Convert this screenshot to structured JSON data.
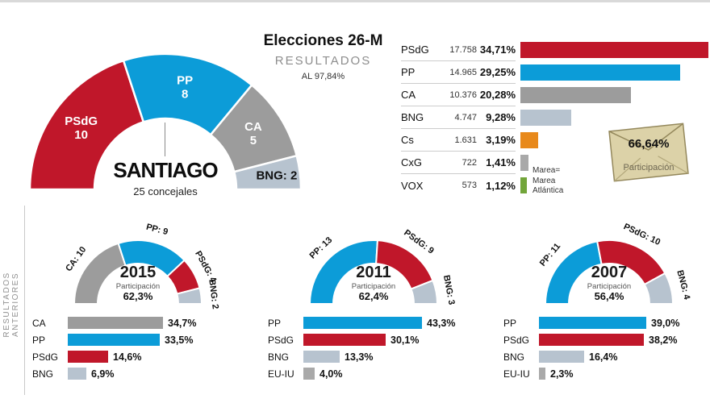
{
  "header": {
    "title": "Elecciones 26-M",
    "subtitle": "RESULTADOS",
    "counted": "AL 97,84%"
  },
  "sidebar": {
    "label": "RESULTADOS ANTERIORES"
  },
  "note_lines": [
    "Marea=",
    "Marea",
    "Atlántica"
  ],
  "participation_box": {
    "value": "66,64%",
    "label": "Participación"
  },
  "colors": {
    "PSdG": "#c0172a",
    "PP": "#0c9cd8",
    "CA": "#9c9c9c",
    "BNG": "#b7c3cf",
    "Cs": "#e8891b",
    "CxG": "#a9a9a9",
    "VOX": "#72a53a",
    "EU-IU": "#a9a9a9"
  },
  "chart_data": [
    {
      "type": "hemicycle",
      "id": "main",
      "title": "SANTIAGO",
      "subtitle": "25 concejales",
      "total_seats": 25,
      "segments": [
        {
          "party": "PSdG",
          "seats": 10,
          "label_lines": [
            "PSdG",
            "10"
          ],
          "label_color": "#ffffff"
        },
        {
          "party": "PP",
          "seats": 8,
          "label_lines": [
            "PP",
            "8"
          ],
          "label_color": "#ffffff"
        },
        {
          "party": "CA",
          "seats": 5,
          "label_lines": [
            "CA",
            "5"
          ],
          "label_color": "#ffffff"
        },
        {
          "party": "BNG",
          "seats": 2,
          "label_lines": [
            "BNG: 2"
          ],
          "label_color": "#111111"
        }
      ]
    },
    {
      "type": "bar",
      "id": "results",
      "unit": "%",
      "rows": [
        {
          "party": "PSdG",
          "votes": "17.758",
          "pct": 34.71,
          "pct_label": "34,71%"
        },
        {
          "party": "PP",
          "votes": "14.965",
          "pct": 29.25,
          "pct_label": "29,25%"
        },
        {
          "party": "CA",
          "votes": "10.376",
          "pct": 20.28,
          "pct_label": "20,28%"
        },
        {
          "party": "BNG",
          "votes": "4.747",
          "pct": 9.28,
          "pct_label": "9,28%"
        },
        {
          "party": "Cs",
          "votes": "1.631",
          "pct": 3.19,
          "pct_label": "3,19%"
        },
        {
          "party": "CxG",
          "votes": "722",
          "pct": 1.41,
          "pct_label": "1,41%"
        },
        {
          "party": "VOX",
          "votes": "573",
          "pct": 1.12,
          "pct_label": "1,12%"
        }
      ]
    },
    {
      "type": "hemicycle",
      "id": "y2015",
      "year": "2015",
      "participation_label": "Participación",
      "participation": "62,3%",
      "segments": [
        {
          "party": "CA",
          "seats": 10,
          "label": "CA: 10"
        },
        {
          "party": "PP",
          "seats": 9,
          "label": "PP: 9"
        },
        {
          "party": "PSdG",
          "seats": 4,
          "label": "PSdG: 4"
        },
        {
          "party": "BNG",
          "seats": 2,
          "label": "BNG: 2"
        }
      ],
      "bars": [
        {
          "party": "CA",
          "pct": 34.7,
          "pct_label": "34,7%"
        },
        {
          "party": "PP",
          "pct": 33.5,
          "pct_label": "33,5%"
        },
        {
          "party": "PSdG",
          "pct": 14.6,
          "pct_label": "14,6%"
        },
        {
          "party": "BNG",
          "pct": 6.9,
          "pct_label": "6,9%"
        }
      ]
    },
    {
      "type": "hemicycle",
      "id": "y2011",
      "year": "2011",
      "participation_label": "Participación",
      "participation": "62,4%",
      "segments": [
        {
          "party": "PP",
          "seats": 13,
          "label": "PP: 13"
        },
        {
          "party": "PSdG",
          "seats": 9,
          "label": "PSdG: 9"
        },
        {
          "party": "BNG",
          "seats": 3,
          "label": "BNG: 3"
        }
      ],
      "bars": [
        {
          "party": "PP",
          "pct": 43.3,
          "pct_label": "43,3%"
        },
        {
          "party": "PSdG",
          "pct": 30.1,
          "pct_label": "30,1%"
        },
        {
          "party": "BNG",
          "pct": 13.3,
          "pct_label": "13,3%"
        },
        {
          "party": "EU-IU",
          "pct": 4.0,
          "pct_label": "4,0%"
        }
      ]
    },
    {
      "type": "hemicycle",
      "id": "y2007",
      "year": "2007",
      "participation_label": "Participación",
      "participation": "56,4%",
      "segments": [
        {
          "party": "PP",
          "seats": 11,
          "label": "PP: 11"
        },
        {
          "party": "PSdG",
          "seats": 10,
          "label": "PSdG: 10"
        },
        {
          "party": "BNG",
          "seats": 4,
          "label": "BNG: 4"
        }
      ],
      "bars": [
        {
          "party": "PP",
          "pct": 39.0,
          "pct_label": "39,0%"
        },
        {
          "party": "PSdG",
          "pct": 38.2,
          "pct_label": "38,2%"
        },
        {
          "party": "BNG",
          "pct": 16.4,
          "pct_label": "16,4%"
        },
        {
          "party": "EU-IU",
          "pct": 2.3,
          "pct_label": "2,3%"
        }
      ]
    }
  ]
}
